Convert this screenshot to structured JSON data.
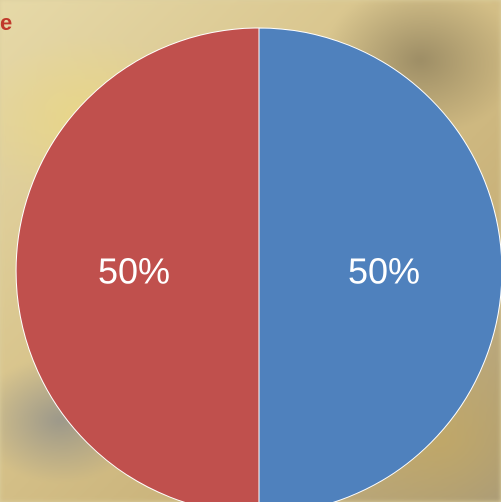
{
  "header": {
    "title_fragment": "e"
  },
  "chart_data": {
    "type": "pie",
    "title": "",
    "slices": [
      {
        "label": "50%",
        "value": 50,
        "color": "#4f81bd"
      },
      {
        "label": "50%",
        "value": 50,
        "color": "#c0504d"
      }
    ],
    "start_angle_deg": 0,
    "direction": "clockwise",
    "legend": "none"
  }
}
